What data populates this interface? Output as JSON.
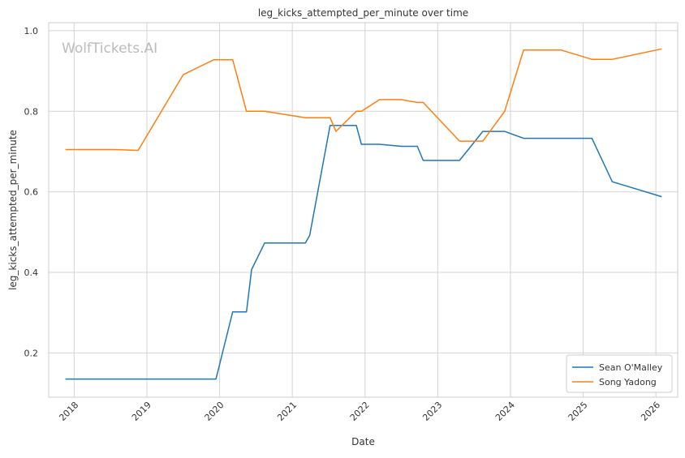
{
  "chart_data": {
    "type": "line",
    "title": "leg_kicks_attempted_per_minute over time",
    "xlabel": "Date",
    "ylabel": "leg_kicks_attempted_per_minute",
    "watermark": "WolfTickets.AI",
    "xlim": [
      2017.65,
      2026.3
    ],
    "ylim": [
      0.09,
      1.02
    ],
    "x_ticks": [
      2018,
      2019,
      2020,
      2021,
      2022,
      2023,
      2024,
      2025,
      2026
    ],
    "x_tick_labels": [
      "2018",
      "2019",
      "2020",
      "2021",
      "2022",
      "2023",
      "2024",
      "2025",
      "2026"
    ],
    "y_ticks": [
      0.2,
      0.4,
      0.6,
      0.8,
      1.0
    ],
    "y_tick_labels": [
      "0.2",
      "0.4",
      "0.6",
      "0.8",
      "1.0"
    ],
    "grid": true,
    "legend_position": "bottom-right",
    "series": [
      {
        "name": "Sean O'Malley",
        "color": "#1f77b4",
        "x": [
          2017.88,
          2019.95,
          2020.18,
          2020.37,
          2020.44,
          2020.62,
          2021.18,
          2021.24,
          2021.52,
          2021.88,
          2021.95,
          2022.2,
          2022.5,
          2022.72,
          2022.8,
          2023.3,
          2023.62,
          2023.92,
          2024.18,
          2025.12,
          2025.4,
          2026.08
        ],
        "y": [
          0.135,
          0.135,
          0.302,
          0.302,
          0.407,
          0.473,
          0.473,
          0.492,
          0.765,
          0.765,
          0.718,
          0.718,
          0.713,
          0.713,
          0.678,
          0.678,
          0.75,
          0.75,
          0.733,
          0.733,
          0.625,
          0.588
        ]
      },
      {
        "name": "Song Yadong",
        "color": "#ff7f0e",
        "x": [
          2017.88,
          2018.55,
          2018.88,
          2019.5,
          2019.92,
          2020.18,
          2020.37,
          2020.62,
          2021.18,
          2021.52,
          2021.6,
          2021.88,
          2021.95,
          2022.2,
          2022.5,
          2022.72,
          2022.8,
          2023.3,
          2023.62,
          2023.92,
          2024.18,
          2024.7,
          2025.12,
          2025.4,
          2026.08
        ],
        "y": [
          0.705,
          0.705,
          0.703,
          0.891,
          0.928,
          0.928,
          0.8,
          0.8,
          0.784,
          0.784,
          0.75,
          0.8,
          0.8,
          0.829,
          0.829,
          0.822,
          0.822,
          0.726,
          0.726,
          0.8,
          0.952,
          0.952,
          0.929,
          0.929,
          0.955
        ]
      }
    ]
  }
}
